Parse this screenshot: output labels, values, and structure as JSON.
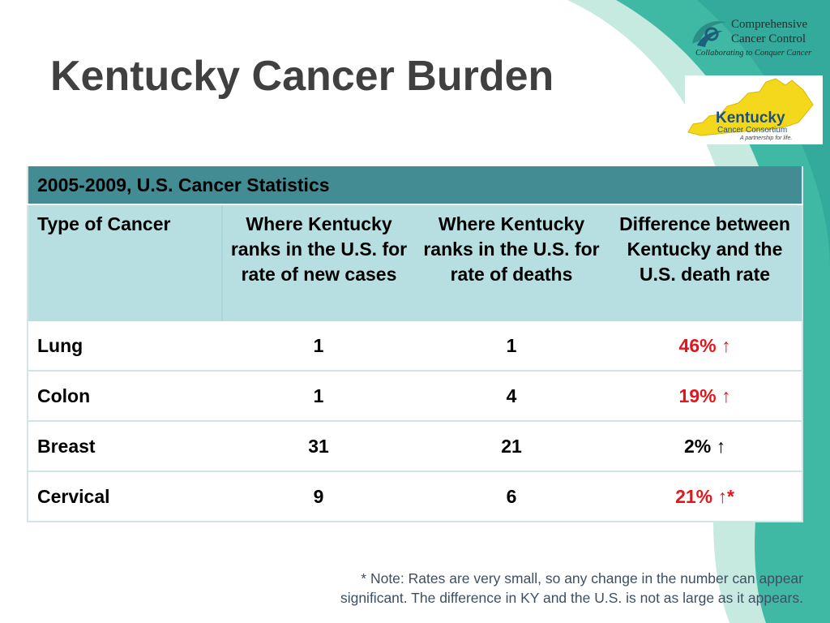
{
  "slide": {
    "title": "Kentucky Cancer Burden",
    "colors": {
      "title": "#404040",
      "table_caption_bg": "#448c93",
      "table_header_bg": "#b7dfe1",
      "highlight_red": "#e3151d",
      "swoosh_teal": "#3fb8a4"
    }
  },
  "logos": {
    "ccc": {
      "line1": "Comprehensive",
      "line2": "Cancer Control",
      "tagline": "Collaborating to Conquer Cancer"
    },
    "kcc": {
      "name": "Kentucky",
      "sub": "Cancer Consortium",
      "tagline": "A partnership for life."
    }
  },
  "table": {
    "caption": "2005-2009, U.S. Cancer Statistics",
    "headers": [
      "Type of Cancer",
      "Where Kentucky ranks in the U.S. for rate of new cases",
      "Where Kentucky ranks in the U.S. for rate of deaths",
      "Difference between Kentucky and the U.S. death rate"
    ],
    "rows": [
      {
        "type": "Lung",
        "new_cases_rank": "1",
        "deaths_rank": "1",
        "difference": "46% ↑",
        "highlight": true
      },
      {
        "type": "Colon",
        "new_cases_rank": "1",
        "deaths_rank": "4",
        "difference": "19% ↑",
        "highlight": true
      },
      {
        "type": "Breast",
        "new_cases_rank": "31",
        "deaths_rank": "21",
        "difference": "2% ↑",
        "highlight": false
      },
      {
        "type": "Cervical",
        "new_cases_rank": "9",
        "deaths_rank": "6",
        "difference": "21% ↑*",
        "highlight": true
      }
    ]
  },
  "note": {
    "line1": "* Note: Rates are very small, so any change in the number can appear",
    "line2": "significant. The difference in KY and the U.S. is not as large as it appears."
  }
}
